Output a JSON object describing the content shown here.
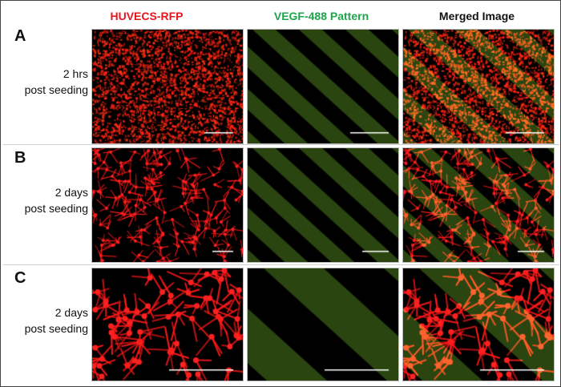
{
  "columns": [
    {
      "label": "HUVECS-RFP",
      "color": "#e8141c"
    },
    {
      "label": "VEGF-488 Pattern",
      "color": "#1aa64a"
    },
    {
      "label": "Merged Image",
      "color": "#111111"
    }
  ],
  "rows": [
    {
      "letter": "A",
      "line1": "2 hrs",
      "line2": "post seeding",
      "cells": "dense"
    },
    {
      "letter": "B",
      "line1": "2 days",
      "line2": "post seeding",
      "cells": "spread"
    },
    {
      "letter": "C",
      "line1": "2 days",
      "line2": "post seeding",
      "cells": "spread-zoom"
    }
  ],
  "colors": {
    "cell_red": "#ff1a1a",
    "pattern_green": "#2c4a10",
    "background": "#000000",
    "scale_bar": "#ffffff"
  }
}
